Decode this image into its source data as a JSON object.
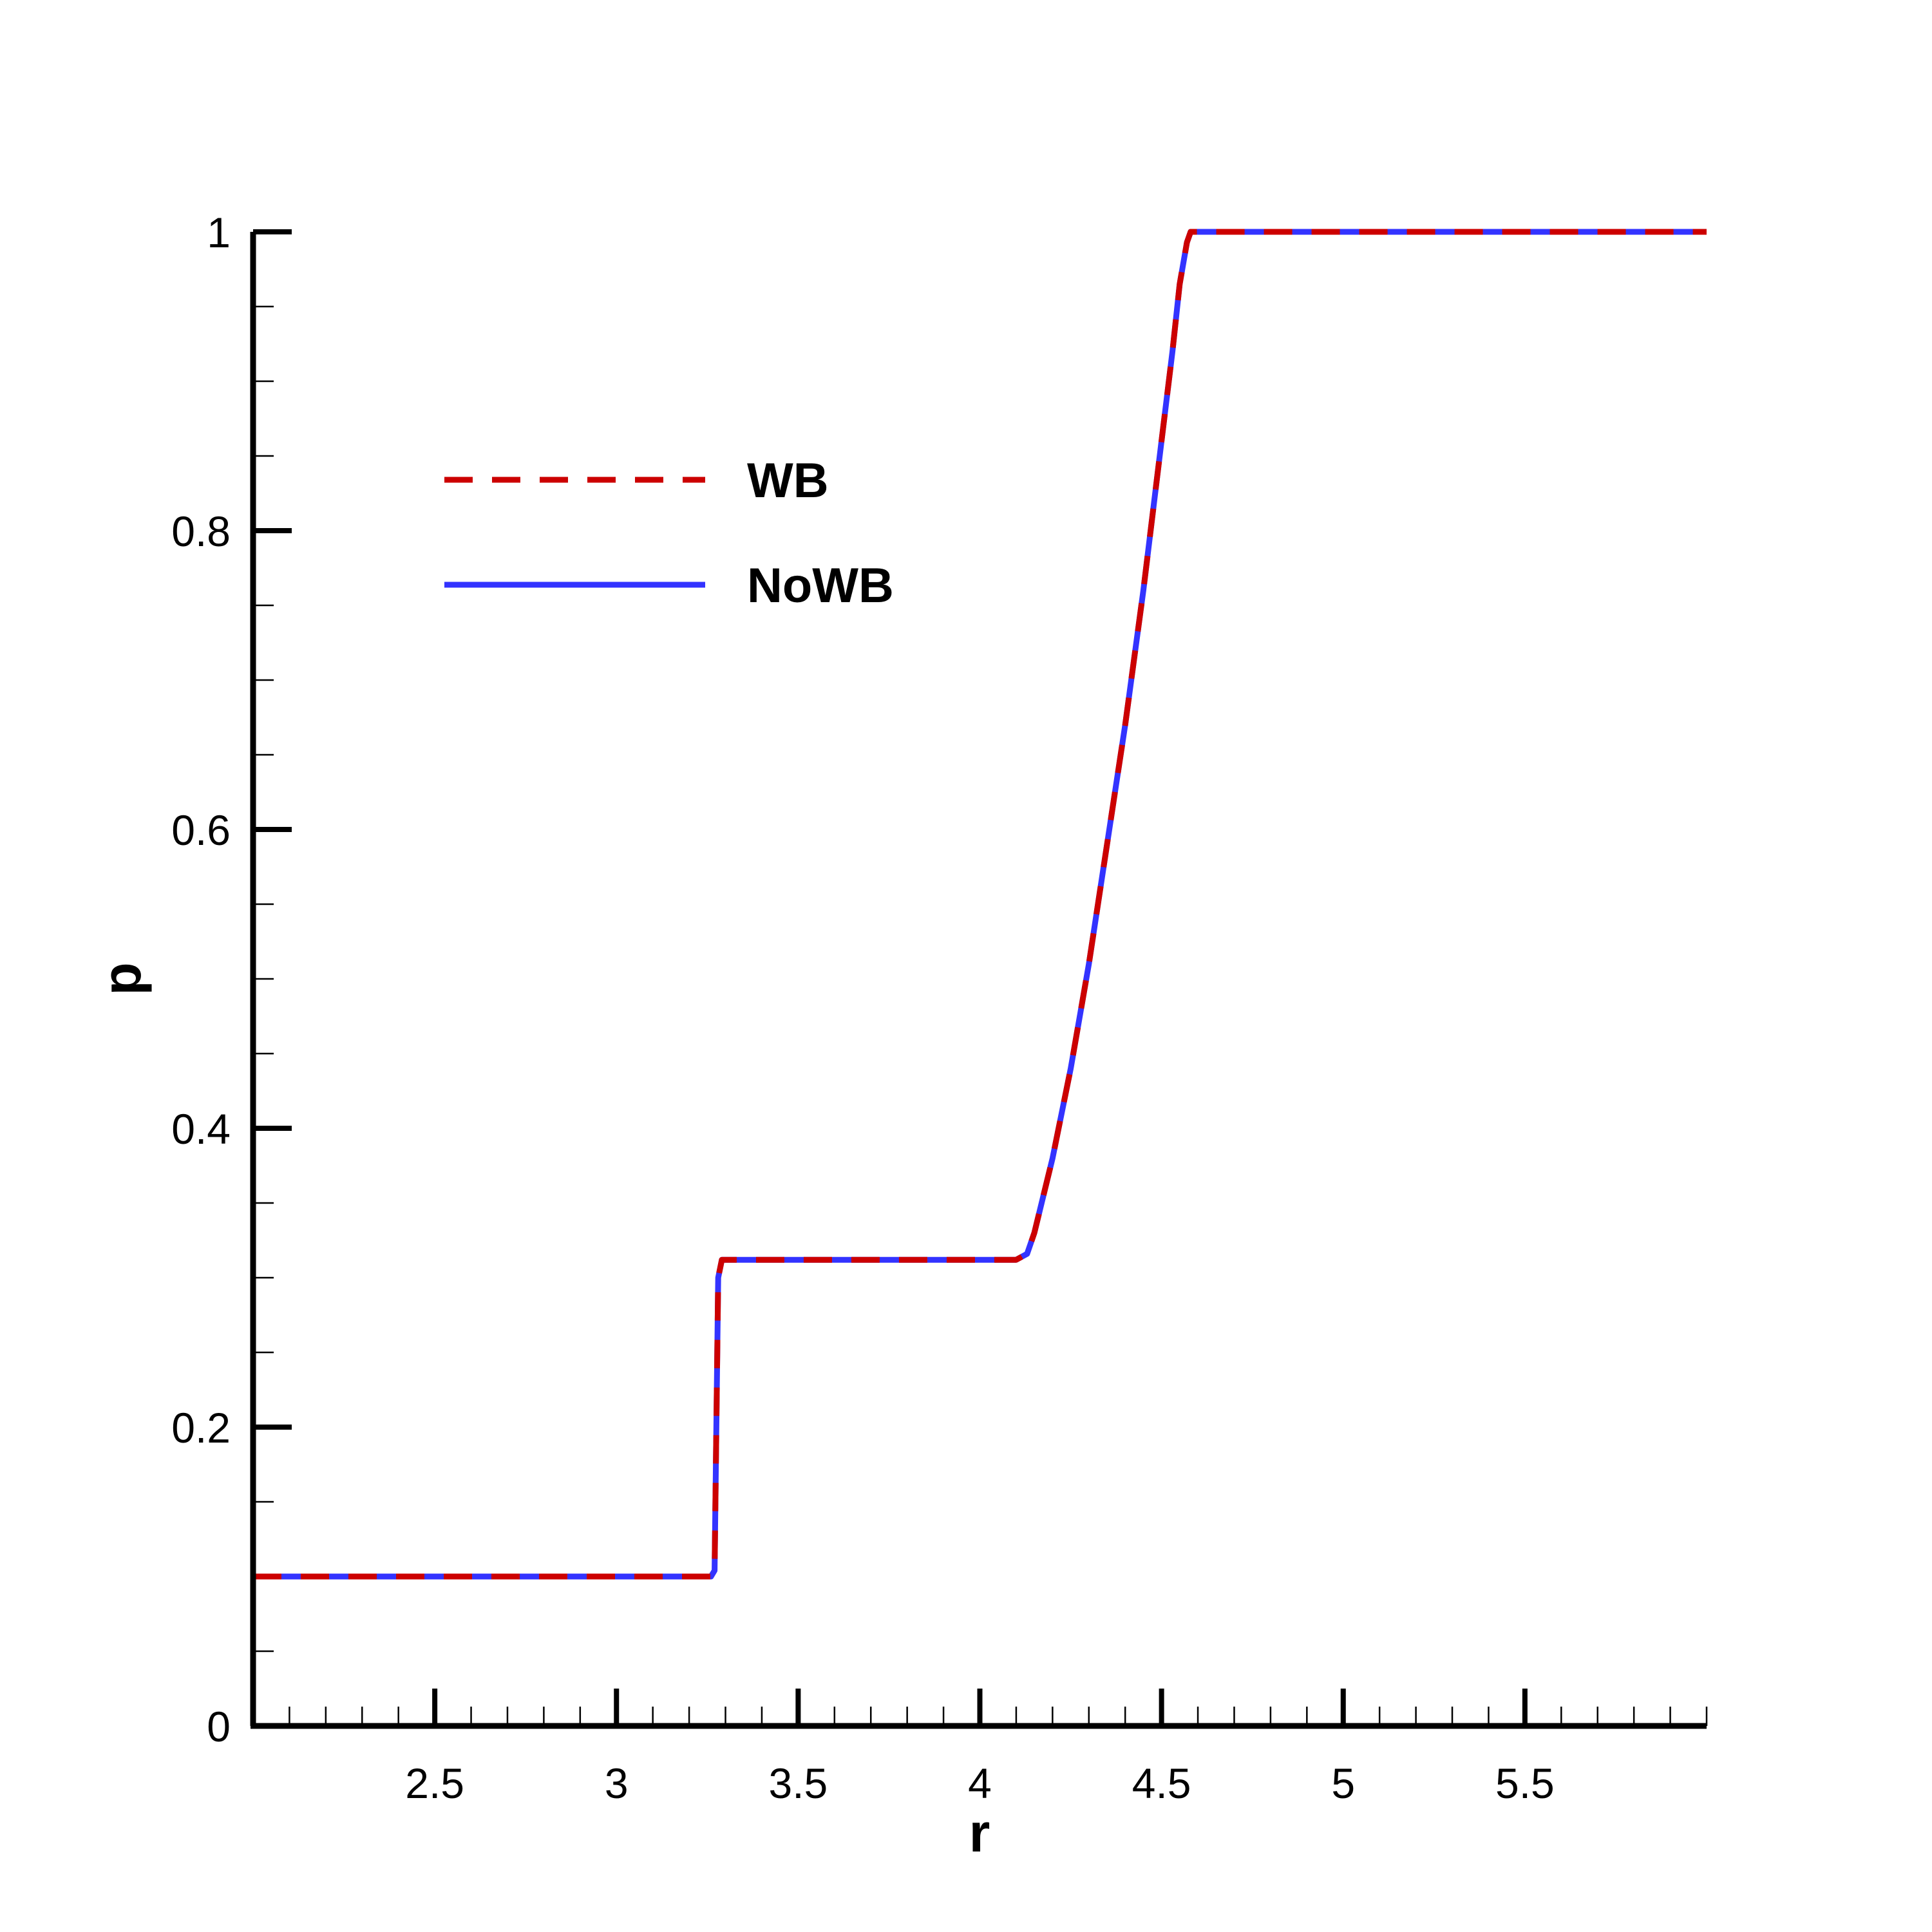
{
  "chart_data": {
    "type": "line",
    "xlabel": "r",
    "ylabel": "p",
    "xlim": [
      2.0,
      6.0
    ],
    "ylim": [
      0,
      1
    ],
    "grid": false,
    "legend_position": "top-left",
    "x_ticks": [
      {
        "value": 2.5,
        "label": "2.5"
      },
      {
        "value": 3.0,
        "label": "3"
      },
      {
        "value": 3.5,
        "label": "3.5"
      },
      {
        "value": 4.0,
        "label": "4"
      },
      {
        "value": 4.5,
        "label": "4.5"
      },
      {
        "value": 5.0,
        "label": "5"
      },
      {
        "value": 5.5,
        "label": "5.5"
      }
    ],
    "y_ticks": [
      {
        "value": 0,
        "label": "0"
      },
      {
        "value": 0.2,
        "label": "0.2"
      },
      {
        "value": 0.4,
        "label": "0.4"
      },
      {
        "value": 0.6,
        "label": "0.6"
      },
      {
        "value": 0.8,
        "label": "0.8"
      },
      {
        "value": 1.0,
        "label": "1"
      }
    ],
    "x_minor_step": 0.1,
    "y_minor_step": 0.05,
    "series": [
      {
        "name": "WB",
        "color": "#cc0000",
        "style": "dashed",
        "x": [
          2.0,
          3.26,
          3.27,
          3.28,
          3.29,
          4.1,
          4.13,
          4.15,
          4.2,
          4.25,
          4.3,
          4.35,
          4.4,
          4.45,
          4.5,
          4.53,
          4.55,
          4.57,
          4.58,
          4.6,
          6.0
        ],
        "y": [
          0.1,
          0.1,
          0.104,
          0.3,
          0.312,
          0.312,
          0.316,
          0.33,
          0.38,
          0.44,
          0.51,
          0.59,
          0.67,
          0.76,
          0.86,
          0.92,
          0.965,
          0.993,
          1.0,
          1.0,
          1.0
        ]
      },
      {
        "name": "NoWB",
        "color": "#3333ff",
        "style": "solid",
        "x": [
          2.0,
          3.26,
          3.27,
          3.28,
          3.29,
          4.1,
          4.13,
          4.15,
          4.2,
          4.25,
          4.3,
          4.35,
          4.4,
          4.45,
          4.5,
          4.53,
          4.55,
          4.57,
          4.58,
          4.6,
          6.0
        ],
        "y": [
          0.1,
          0.1,
          0.104,
          0.3,
          0.312,
          0.312,
          0.316,
          0.33,
          0.38,
          0.44,
          0.51,
          0.59,
          0.67,
          0.76,
          0.86,
          0.92,
          0.965,
          0.993,
          1.0,
          1.0,
          1.0
        ]
      }
    ]
  }
}
